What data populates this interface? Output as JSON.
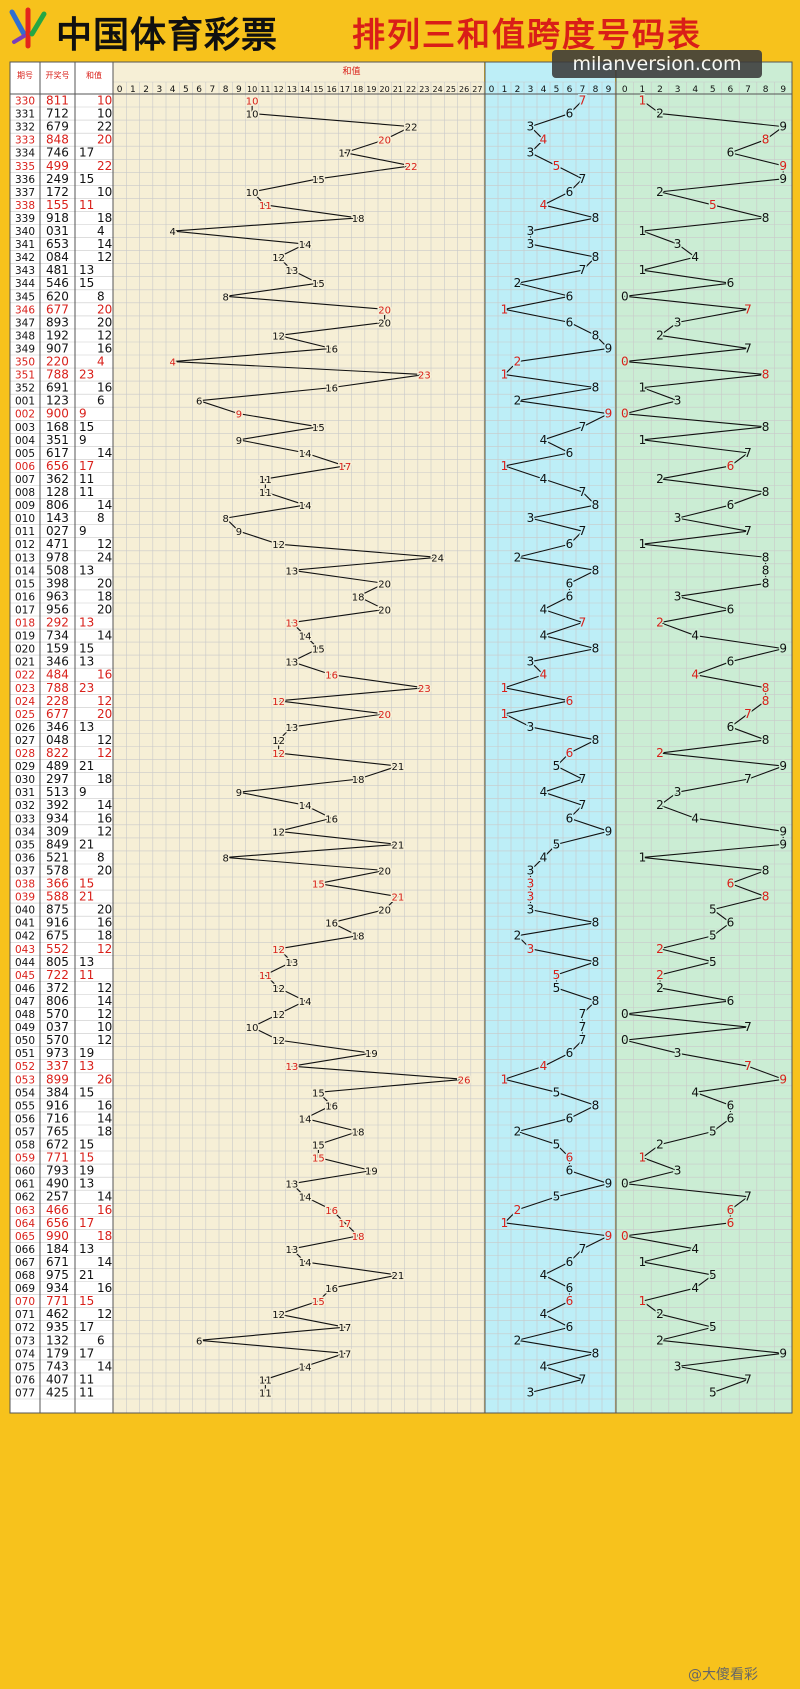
{
  "header": {
    "brand": "中国体育彩票",
    "title": "排列三和值跨度号码表",
    "watermark": "milanversion.com",
    "footer_mark": "@大傻看彩"
  },
  "colors": {
    "red": "#d9201a",
    "black": "#111111",
    "sum_bg": "#f6efd6",
    "span_bg": "#bdeef7",
    "last_bg": "#cbedd4",
    "grid": "#c9c9c9"
  },
  "columns": {
    "period": "期号",
    "number": "开奖号",
    "sum": "和值",
    "sum_axis": "和值"
  },
  "chart_data": {
    "type": "table",
    "sum_axis": [
      0,
      27
    ],
    "span_axis": [
      0,
      9
    ],
    "last_axis": [
      0,
      9
    ],
    "rows": [
      {
        "p": "330",
        "n": "811",
        "s": 10,
        "r": 1
      },
      {
        "p": "331",
        "n": "712",
        "s": 10,
        "r": 0
      },
      {
        "p": "332",
        "n": "679",
        "s": 22,
        "r": 0
      },
      {
        "p": "333",
        "n": "848",
        "s": 20,
        "r": 1
      },
      {
        "p": "334",
        "n": "746",
        "s": 17,
        "r": 0
      },
      {
        "p": "335",
        "n": "499",
        "s": 22,
        "r": 1
      },
      {
        "p": "336",
        "n": "249",
        "s": 15,
        "r": 0
      },
      {
        "p": "337",
        "n": "172",
        "s": 10,
        "r": 0
      },
      {
        "p": "338",
        "n": "155",
        "s": 11,
        "r": 1
      },
      {
        "p": "339",
        "n": "918",
        "s": 18,
        "r": 0
      },
      {
        "p": "340",
        "n": "031",
        "s": 4,
        "r": 0
      },
      {
        "p": "341",
        "n": "653",
        "s": 14,
        "r": 0
      },
      {
        "p": "342",
        "n": "084",
        "s": 12,
        "r": 0
      },
      {
        "p": "343",
        "n": "481",
        "s": 13,
        "r": 0
      },
      {
        "p": "344",
        "n": "546",
        "s": 15,
        "r": 0
      },
      {
        "p": "345",
        "n": "620",
        "s": 8,
        "r": 0
      },
      {
        "p": "346",
        "n": "677",
        "s": 20,
        "r": 1
      },
      {
        "p": "347",
        "n": "893",
        "s": 20,
        "r": 0
      },
      {
        "p": "348",
        "n": "192",
        "s": 12,
        "r": 0
      },
      {
        "p": "349",
        "n": "907",
        "s": 16,
        "r": 0
      },
      {
        "p": "350",
        "n": "220",
        "s": 4,
        "r": 1
      },
      {
        "p": "351",
        "n": "788",
        "s": 23,
        "r": 1
      },
      {
        "p": "352",
        "n": "691",
        "s": 16,
        "r": 0
      },
      {
        "p": "001",
        "n": "123",
        "s": 6,
        "r": 0
      },
      {
        "p": "002",
        "n": "900",
        "s": 9,
        "r": 1
      },
      {
        "p": "003",
        "n": "168",
        "s": 15,
        "r": 0
      },
      {
        "p": "004",
        "n": "351",
        "s": 9,
        "r": 0
      },
      {
        "p": "005",
        "n": "617",
        "s": 14,
        "r": 0
      },
      {
        "p": "006",
        "n": "656",
        "s": 17,
        "r": 1
      },
      {
        "p": "007",
        "n": "362",
        "s": 11,
        "r": 0
      },
      {
        "p": "008",
        "n": "128",
        "s": 11,
        "r": 0
      },
      {
        "p": "009",
        "n": "806",
        "s": 14,
        "r": 0
      },
      {
        "p": "010",
        "n": "143",
        "s": 8,
        "r": 0
      },
      {
        "p": "011",
        "n": "027",
        "s": 9,
        "r": 0
      },
      {
        "p": "012",
        "n": "471",
        "s": 12,
        "r": 0
      },
      {
        "p": "013",
        "n": "978",
        "s": 24,
        "r": 0
      },
      {
        "p": "014",
        "n": "508",
        "s": 13,
        "r": 0
      },
      {
        "p": "015",
        "n": "398",
        "s": 20,
        "r": 0
      },
      {
        "p": "016",
        "n": "963",
        "s": 18,
        "r": 0
      },
      {
        "p": "017",
        "n": "956",
        "s": 20,
        "r": 0
      },
      {
        "p": "018",
        "n": "292",
        "s": 13,
        "r": 1
      },
      {
        "p": "019",
        "n": "734",
        "s": 14,
        "r": 0
      },
      {
        "p": "020",
        "n": "159",
        "s": 15,
        "r": 0
      },
      {
        "p": "021",
        "n": "346",
        "s": 13,
        "r": 0
      },
      {
        "p": "022",
        "n": "484",
        "s": 16,
        "r": 1
      },
      {
        "p": "023",
        "n": "788",
        "s": 23,
        "r": 1
      },
      {
        "p": "024",
        "n": "228",
        "s": 12,
        "r": 1
      },
      {
        "p": "025",
        "n": "677",
        "s": 20,
        "r": 1
      },
      {
        "p": "026",
        "n": "346",
        "s": 13,
        "r": 0
      },
      {
        "p": "027",
        "n": "048",
        "s": 12,
        "r": 0
      },
      {
        "p": "028",
        "n": "822",
        "s": 12,
        "r": 1
      },
      {
        "p": "029",
        "n": "489",
        "s": 21,
        "r": 0
      },
      {
        "p": "030",
        "n": "297",
        "s": 18,
        "r": 0
      },
      {
        "p": "031",
        "n": "513",
        "s": 9,
        "r": 0
      },
      {
        "p": "032",
        "n": "392",
        "s": 14,
        "r": 0
      },
      {
        "p": "033",
        "n": "934",
        "s": 16,
        "r": 0
      },
      {
        "p": "034",
        "n": "309",
        "s": 12,
        "r": 0
      },
      {
        "p": "035",
        "n": "849",
        "s": 21,
        "r": 0
      },
      {
        "p": "036",
        "n": "521",
        "s": 8,
        "r": 0
      },
      {
        "p": "037",
        "n": "578",
        "s": 20,
        "r": 0
      },
      {
        "p": "038",
        "n": "366",
        "s": 15,
        "r": 1
      },
      {
        "p": "039",
        "n": "588",
        "s": 21,
        "r": 1
      },
      {
        "p": "040",
        "n": "875",
        "s": 20,
        "r": 0
      },
      {
        "p": "041",
        "n": "916",
        "s": 16,
        "r": 0
      },
      {
        "p": "042",
        "n": "675",
        "s": 18,
        "r": 0
      },
      {
        "p": "043",
        "n": "552",
        "s": 12,
        "r": 1
      },
      {
        "p": "044",
        "n": "805",
        "s": 13,
        "r": 0
      },
      {
        "p": "045",
        "n": "722",
        "s": 11,
        "r": 1
      },
      {
        "p": "046",
        "n": "372",
        "s": 12,
        "r": 0
      },
      {
        "p": "047",
        "n": "806",
        "s": 14,
        "r": 0
      },
      {
        "p": "048",
        "n": "570",
        "s": 12,
        "r": 0
      },
      {
        "p": "049",
        "n": "037",
        "s": 10,
        "r": 0
      },
      {
        "p": "050",
        "n": "570",
        "s": 12,
        "r": 0
      },
      {
        "p": "051",
        "n": "973",
        "s": 19,
        "r": 0
      },
      {
        "p": "052",
        "n": "337",
        "s": 13,
        "r": 1
      },
      {
        "p": "053",
        "n": "899",
        "s": 26,
        "r": 1
      },
      {
        "p": "054",
        "n": "384",
        "s": 15,
        "r": 0
      },
      {
        "p": "055",
        "n": "916",
        "s": 16,
        "r": 0
      },
      {
        "p": "056",
        "n": "716",
        "s": 14,
        "r": 0
      },
      {
        "p": "057",
        "n": "765",
        "s": 18,
        "r": 0
      },
      {
        "p": "058",
        "n": "672",
        "s": 15,
        "r": 0
      },
      {
        "p": "059",
        "n": "771",
        "s": 15,
        "r": 1
      },
      {
        "p": "060",
        "n": "793",
        "s": 19,
        "r": 0
      },
      {
        "p": "061",
        "n": "490",
        "s": 13,
        "r": 0
      },
      {
        "p": "062",
        "n": "257",
        "s": 14,
        "r": 0
      },
      {
        "p": "063",
        "n": "466",
        "s": 16,
        "r": 1
      },
      {
        "p": "064",
        "n": "656",
        "s": 17,
        "r": 1
      },
      {
        "p": "065",
        "n": "990",
        "s": 18,
        "r": 1
      },
      {
        "p": "066",
        "n": "184",
        "s": 13,
        "r": 0
      },
      {
        "p": "067",
        "n": "671",
        "s": 14,
        "r": 0
      },
      {
        "p": "068",
        "n": "975",
        "s": 21,
        "r": 0
      },
      {
        "p": "069",
        "n": "934",
        "s": 16,
        "r": 0
      },
      {
        "p": "070",
        "n": "771",
        "s": 15,
        "r": 1
      },
      {
        "p": "071",
        "n": "462",
        "s": 12,
        "r": 0
      },
      {
        "p": "072",
        "n": "935",
        "s": 17,
        "r": 0
      },
      {
        "p": "073",
        "n": "132",
        "s": 6,
        "r": 0
      },
      {
        "p": "074",
        "n": "179",
        "s": 17,
        "r": 0
      },
      {
        "p": "075",
        "n": "743",
        "s": 14,
        "r": 0
      },
      {
        "p": "076",
        "n": "407",
        "s": 11,
        "r": 0
      },
      {
        "p": "077",
        "n": "425",
        "s": 11,
        "r": 0
      }
    ]
  }
}
